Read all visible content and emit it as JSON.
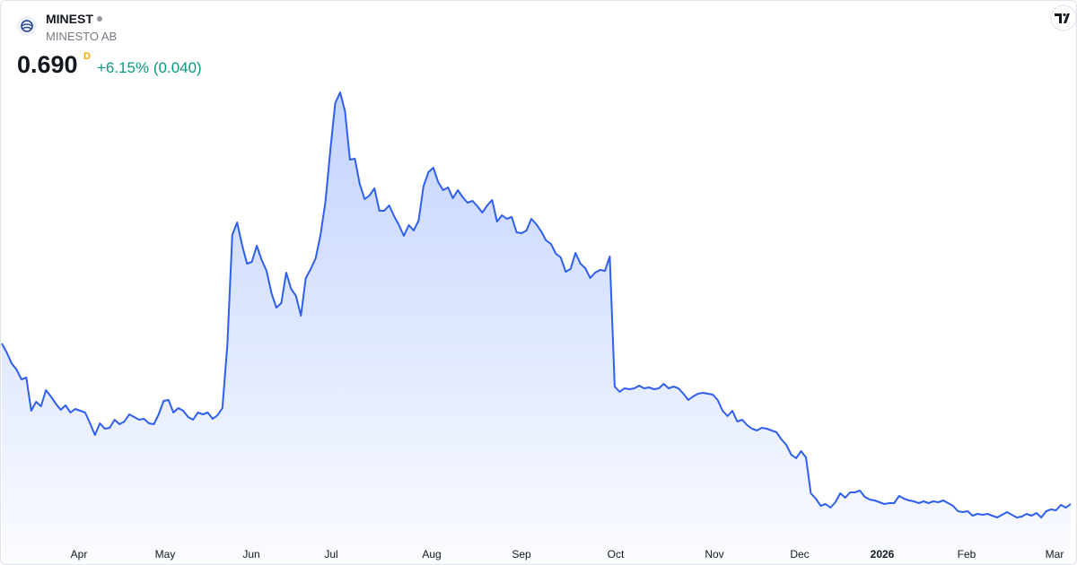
{
  "header": {
    "symbol": "MINEST",
    "name": "MINESTO AB",
    "price": "0.690",
    "interval": "D",
    "change": "+6.15% (0.040)"
  },
  "chart_data": {
    "type": "line",
    "color": "#2f5fef",
    "x_labels": [
      "Apr",
      "May",
      "Jun",
      "Jul",
      "Aug",
      "Sep",
      "Oct",
      "Nov",
      "Dec",
      "2026",
      "Feb",
      "Mar"
    ],
    "values": [
      2.48,
      2.38,
      2.26,
      2.19,
      2.08,
      2.1,
      1.73,
      1.83,
      1.78,
      1.96,
      1.89,
      1.81,
      1.74,
      1.79,
      1.71,
      1.75,
      1.73,
      1.71,
      1.59,
      1.46,
      1.59,
      1.53,
      1.54,
      1.63,
      1.58,
      1.61,
      1.69,
      1.66,
      1.63,
      1.64,
      1.59,
      1.58,
      1.69,
      1.84,
      1.85,
      1.71,
      1.76,
      1.73,
      1.66,
      1.63,
      1.71,
      1.69,
      1.71,
      1.64,
      1.68,
      1.76,
      2.46,
      3.69,
      3.83,
      3.58,
      3.37,
      3.39,
      3.57,
      3.41,
      3.29,
      3.04,
      2.88,
      2.93,
      3.27,
      3.09,
      3.01,
      2.79,
      3.21,
      3.31,
      3.43,
      3.69,
      4.06,
      4.63,
      5.16,
      5.28,
      5.07,
      4.53,
      4.54,
      4.26,
      4.09,
      4.13,
      4.21,
      3.96,
      3.96,
      4.02,
      3.9,
      3.8,
      3.68,
      3.8,
      3.74,
      3.85,
      4.23,
      4.39,
      4.44,
      4.28,
      4.19,
      4.22,
      4.1,
      4.19,
      4.11,
      4.05,
      4.07,
      4.01,
      3.94,
      4.02,
      4.08,
      3.84,
      3.91,
      3.87,
      3.89,
      3.72,
      3.71,
      3.74,
      3.87,
      3.81,
      3.73,
      3.63,
      3.59,
      3.48,
      3.44,
      3.28,
      3.31,
      3.49,
      3.37,
      3.32,
      3.21,
      3.27,
      3.3,
      3.29,
      3.45,
      2.0,
      1.94,
      1.98,
      1.97,
      1.98,
      2.01,
      1.98,
      1.99,
      1.97,
      1.98,
      2.03,
      1.98,
      2.0,
      1.98,
      1.92,
      1.85,
      1.89,
      1.92,
      1.93,
      1.92,
      1.91,
      1.85,
      1.73,
      1.67,
      1.73,
      1.61,
      1.63,
      1.57,
      1.53,
      1.51,
      1.54,
      1.53,
      1.51,
      1.49,
      1.41,
      1.35,
      1.24,
      1.2,
      1.28,
      1.21,
      0.81,
      0.75,
      0.67,
      0.69,
      0.65,
      0.71,
      0.81,
      0.76,
      0.82,
      0.82,
      0.84,
      0.77,
      0.74,
      0.73,
      0.71,
      0.69,
      0.7,
      0.7,
      0.78,
      0.75,
      0.73,
      0.72,
      0.7,
      0.72,
      0.7,
      0.72,
      0.71,
      0.73,
      0.7,
      0.67,
      0.61,
      0.6,
      0.61,
      0.56,
      0.58,
      0.57,
      0.58,
      0.56,
      0.54,
      0.57,
      0.6,
      0.57,
      0.54,
      0.55,
      0.58,
      0.56,
      0.59,
      0.54,
      0.61,
      0.63,
      0.62,
      0.68,
      0.65,
      0.69
    ]
  }
}
